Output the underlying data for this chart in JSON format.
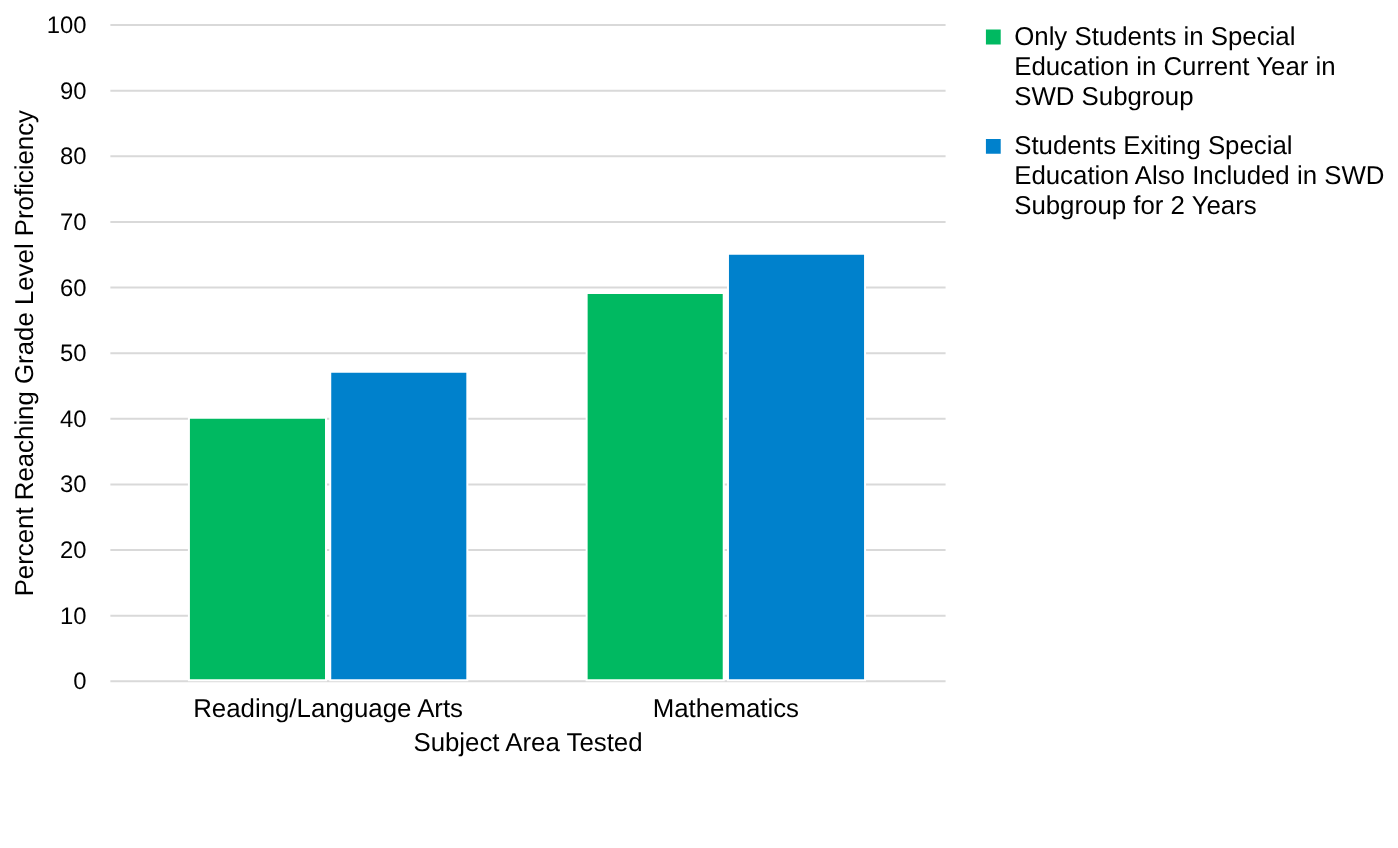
{
  "chart_data": {
    "type": "bar",
    "xlabel": "Subject Area Tested",
    "ylabel": "Percent  Reaching Grade Level Proficiency",
    "categories": [
      "Reading/Language Arts",
      "Mathematics"
    ],
    "series": [
      {
        "name": "Only Students in Special Education in Current Year in SWD Subgroup",
        "color": "#00b961",
        "values": [
          40,
          59
        ]
      },
      {
        "name": "Students Exiting Special Education Also Included in SWD Subgroup for 2 Years",
        "color": "#0081cc",
        "values": [
          47,
          65
        ]
      }
    ],
    "ylim": [
      0,
      100
    ],
    "yticks": [
      0,
      10,
      20,
      30,
      40,
      50,
      60,
      70,
      80,
      90,
      100
    ],
    "grid": "y",
    "legend": "right"
  }
}
